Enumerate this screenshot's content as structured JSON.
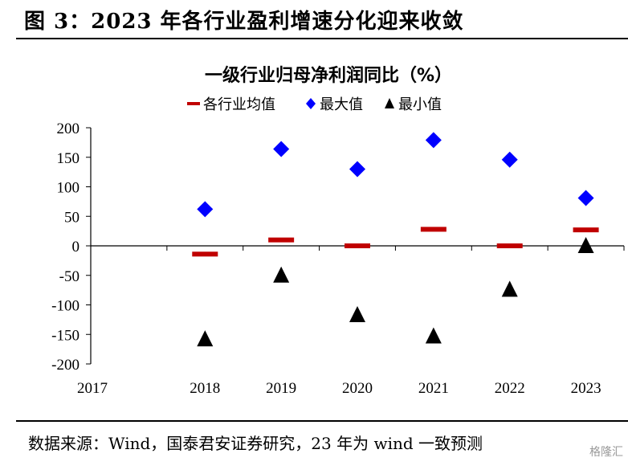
{
  "figure": {
    "title": "图 3：2023 年各行业盈利增速分化迎来收敛",
    "source": "数据来源：Wind，国泰君安证券研究，23 年为 wind 一致预测",
    "watermark": "格隆汇"
  },
  "chart_data": {
    "type": "scatter",
    "title": "一级行业归母净利润同比（%）",
    "x_ticks": [
      "2017",
      "2018",
      "2019",
      "2020",
      "2021",
      "2022",
      "2023"
    ],
    "categories": [
      "2018",
      "2019",
      "2020",
      "2021",
      "2022",
      "2023"
    ],
    "ylim": [
      -200,
      200
    ],
    "y_ticks": [
      200,
      150,
      100,
      50,
      0,
      -50,
      -100,
      -150,
      -200
    ],
    "grid": false,
    "legend_position": "top-center",
    "series": [
      {
        "name": "各行业均值",
        "marker": "dash",
        "color": "#c00000",
        "values": [
          -14,
          10,
          0,
          28,
          0,
          27
        ]
      },
      {
        "name": "最大值",
        "marker": "diamond",
        "color": "#0000ff",
        "values": [
          62,
          164,
          130,
          179,
          146,
          81
        ]
      },
      {
        "name": "最小值",
        "marker": "triangle",
        "color": "#000000",
        "values": [
          -158,
          -50,
          -117,
          -153,
          -74,
          0
        ]
      }
    ]
  }
}
